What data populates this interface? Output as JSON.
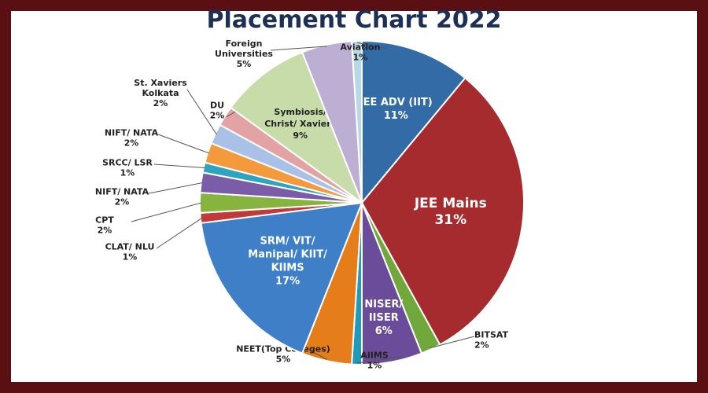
{
  "page": {
    "title": "Placement Chart 2022"
  },
  "chart_data": {
    "type": "pie",
    "title": "Placement Chart 2022",
    "slices": [
      {
        "label": "JEE ADV (IIT)",
        "value": 11,
        "pct": "11%",
        "color": "#336ba7"
      },
      {
        "label": "JEE Mains",
        "value": 31,
        "pct": "31%",
        "color": "#a52b2e"
      },
      {
        "label": "BITSAT",
        "value": 2,
        "pct": "2%",
        "color": "#70a83c"
      },
      {
        "label": "NISER/ IISER",
        "value": 6,
        "pct": "6%",
        "color": "#6b4c9a"
      },
      {
        "label": "AIIMS",
        "value": 1,
        "pct": "1%",
        "color": "#1f9ab8"
      },
      {
        "label": "NEET(Top Colleges)",
        "value": 5,
        "pct": "5%",
        "color": "#e57d1a"
      },
      {
        "label": "SRM/ VIT/ Manipal/ KIIT/ KIIMS",
        "value": 17,
        "pct": "17%",
        "color": "#3f7fc8"
      },
      {
        "label": "CLAT/ NLU",
        "value": 1,
        "pct": "1%",
        "color": "#c1393b"
      },
      {
        "label": "CPT",
        "value": 2,
        "pct": "2%",
        "color": "#86b43f"
      },
      {
        "label": "NIFT/ NATA",
        "value": 2,
        "pct": "2%",
        "color": "#7b5ca9"
      },
      {
        "label": "SRCC/ LSR",
        "value": 1,
        "pct": "1%",
        "color": "#2ea4c0"
      },
      {
        "label": "NIFT/ NATA",
        "value": 2,
        "pct": "2%",
        "color": "#f59a3c"
      },
      {
        "label": "St. Xaviers Kolkata",
        "value": 2,
        "pct": "2%",
        "color": "#a9c1e6"
      },
      {
        "label": "DU",
        "value": 2,
        "pct": "2%",
        "color": "#e3a3a5"
      },
      {
        "label": "Symbiosis/ Christ/ Xaviers",
        "value": 9,
        "pct": "9%",
        "color": "#c8dcaa"
      },
      {
        "label": "Foreign Universities",
        "value": 5,
        "pct": "5%",
        "color": "#bdaed3"
      },
      {
        "label": "Aviation",
        "value": 1,
        "pct": "1%",
        "color": "#b6d8e8"
      }
    ]
  }
}
